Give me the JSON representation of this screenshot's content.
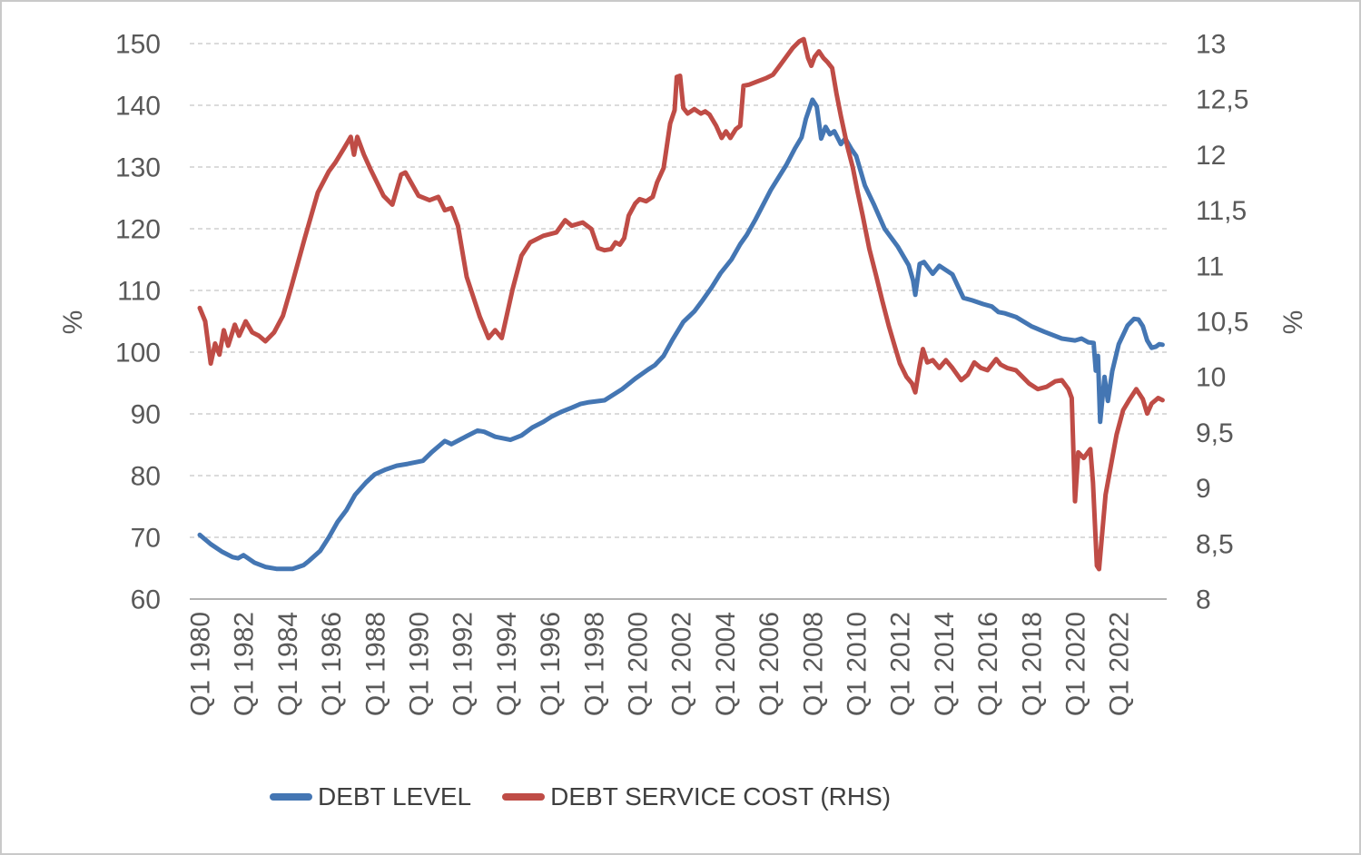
{
  "chart_data": {
    "type": "line",
    "title": "",
    "grid": true,
    "legend": {
      "position": "bottom"
    },
    "left_axis": {
      "title": "%",
      "min": 60,
      "max": 150,
      "step": 10,
      "ticks": [
        "150",
        "140",
        "130",
        "120",
        "110",
        "100",
        "90",
        "80",
        "70",
        "60"
      ]
    },
    "right_axis": {
      "title": "%",
      "min": 8,
      "max": 13,
      "step": 0.5,
      "ticks": [
        "13",
        "12,5",
        "12",
        "11,5",
        "11",
        "10,5",
        "10",
        "9,5",
        "9",
        "8,5",
        "8"
      ]
    },
    "x_axis": {
      "tick_years": [
        1980,
        1982,
        1984,
        1986,
        1988,
        1990,
        1992,
        1994,
        1996,
        1998,
        2000,
        2002,
        2004,
        2006,
        2008,
        2010,
        2012,
        2014,
        2016,
        2018,
        2020,
        2022
      ],
      "tick_labels": [
        "Q1 1980",
        "Q1 1982",
        "Q1 1984",
        "Q1 1986",
        "Q1 1988",
        "Q1 1990",
        "Q1 1992",
        "Q1 1994",
        "Q1 1996",
        "Q1 1998",
        "Q1 2000",
        "Q1 2002",
        "Q1 2004",
        "Q1 2006",
        "Q1 2008",
        "Q1 2010",
        "Q1 2012",
        "Q1 2014",
        "Q1 2016",
        "Q1 2018",
        "Q1 2020",
        "Q1 2022"
      ],
      "range_years": [
        1980,
        2024
      ]
    },
    "series": [
      {
        "name": "DEBT LEVEL",
        "axis": "left",
        "color": "#4476b3",
        "points": [
          [
            1980.0,
            70.4
          ],
          [
            1980.5,
            68.9
          ],
          [
            1981.0,
            67.7
          ],
          [
            1981.5,
            66.8
          ],
          [
            1981.75,
            66.6
          ],
          [
            1982.0,
            67.1
          ],
          [
            1982.5,
            65.9
          ],
          [
            1983.0,
            65.2
          ],
          [
            1983.5,
            64.9
          ],
          [
            1984.25,
            64.9
          ],
          [
            1984.75,
            65.5
          ],
          [
            1985.0,
            66.2
          ],
          [
            1985.5,
            67.8
          ],
          [
            1985.9,
            70.0
          ],
          [
            1986.3,
            72.5
          ],
          [
            1986.7,
            74.4
          ],
          [
            1987.1,
            76.9
          ],
          [
            1987.6,
            78.9
          ],
          [
            1988.0,
            80.2
          ],
          [
            1988.5,
            81.0
          ],
          [
            1989.0,
            81.6
          ],
          [
            1989.5,
            81.9
          ],
          [
            1990.2,
            82.4
          ],
          [
            1990.6,
            83.8
          ],
          [
            1991.0,
            85.0
          ],
          [
            1991.2,
            85.6
          ],
          [
            1991.5,
            85.1
          ],
          [
            1992.2,
            86.4
          ],
          [
            1992.7,
            87.3
          ],
          [
            1993.0,
            87.1
          ],
          [
            1993.5,
            86.3
          ],
          [
            1994.2,
            85.8
          ],
          [
            1994.7,
            86.5
          ],
          [
            1995.2,
            87.8
          ],
          [
            1995.7,
            88.7
          ],
          [
            1996.1,
            89.6
          ],
          [
            1996.5,
            90.3
          ],
          [
            1997.0,
            91.0
          ],
          [
            1997.4,
            91.6
          ],
          [
            1997.8,
            91.9
          ],
          [
            1998.5,
            92.2
          ],
          [
            1999.3,
            94.0
          ],
          [
            1999.9,
            95.7
          ],
          [
            2000.5,
            97.2
          ],
          [
            2000.8,
            97.9
          ],
          [
            2001.2,
            99.4
          ],
          [
            2001.6,
            102.0
          ],
          [
            2002.1,
            104.9
          ],
          [
            2002.6,
            106.6
          ],
          [
            2003.0,
            108.5
          ],
          [
            2003.4,
            110.5
          ],
          [
            2003.8,
            112.8
          ],
          [
            2004.3,
            115.0
          ],
          [
            2004.7,
            117.5
          ],
          [
            2005.0,
            119.0
          ],
          [
            2005.4,
            121.5
          ],
          [
            2006.1,
            126.3
          ],
          [
            2006.8,
            130.3
          ],
          [
            2007.2,
            133.0
          ],
          [
            2007.5,
            134.8
          ],
          [
            2007.7,
            137.8
          ],
          [
            2008.0,
            140.9
          ],
          [
            2008.2,
            139.8
          ],
          [
            2008.4,
            134.6
          ],
          [
            2008.6,
            136.5
          ],
          [
            2008.8,
            135.3
          ],
          [
            2009.0,
            135.8
          ],
          [
            2009.3,
            133.7
          ],
          [
            2009.5,
            134.6
          ],
          [
            2009.8,
            132.8
          ],
          [
            2010.0,
            131.8
          ],
          [
            2010.4,
            127.0
          ],
          [
            2010.8,
            124.0
          ],
          [
            2011.3,
            120.0
          ],
          [
            2011.9,
            117.1
          ],
          [
            2012.4,
            114.1
          ],
          [
            2012.6,
            111.6
          ],
          [
            2012.7,
            109.3
          ],
          [
            2012.9,
            114.3
          ],
          [
            2013.1,
            114.6
          ],
          [
            2013.5,
            112.7
          ],
          [
            2013.8,
            114.0
          ],
          [
            2014.4,
            112.6
          ],
          [
            2014.9,
            108.8
          ],
          [
            2015.3,
            108.4
          ],
          [
            2015.8,
            107.8
          ],
          [
            2016.2,
            107.4
          ],
          [
            2016.5,
            106.5
          ],
          [
            2016.8,
            106.3
          ],
          [
            2017.3,
            105.7
          ],
          [
            2018.0,
            104.2
          ],
          [
            2018.6,
            103.3
          ],
          [
            2019.4,
            102.2
          ],
          [
            2020.0,
            101.9
          ],
          [
            2020.3,
            102.2
          ],
          [
            2020.6,
            101.6
          ],
          [
            2020.85,
            101.5
          ],
          [
            2020.95,
            97.0
          ],
          [
            2021.05,
            99.4
          ],
          [
            2021.15,
            88.7
          ],
          [
            2021.35,
            96.0
          ],
          [
            2021.5,
            92.1
          ],
          [
            2021.7,
            96.9
          ],
          [
            2022.0,
            101.3
          ],
          [
            2022.4,
            104.3
          ],
          [
            2022.7,
            105.4
          ],
          [
            2022.9,
            105.3
          ],
          [
            2023.1,
            104.2
          ],
          [
            2023.3,
            101.9
          ],
          [
            2023.5,
            100.7
          ],
          [
            2023.7,
            100.9
          ],
          [
            2023.85,
            101.3
          ],
          [
            2024.0,
            101.2
          ]
        ]
      },
      {
        "name": "DEBT SERVICE COST (RHS)",
        "axis": "right",
        "color": "#bf4c46",
        "points": [
          [
            1980.0,
            10.62
          ],
          [
            1980.25,
            10.5
          ],
          [
            1980.5,
            10.12
          ],
          [
            1980.7,
            10.3
          ],
          [
            1980.9,
            10.2
          ],
          [
            1981.1,
            10.42
          ],
          [
            1981.3,
            10.28
          ],
          [
            1981.6,
            10.47
          ],
          [
            1981.8,
            10.37
          ],
          [
            1982.1,
            10.5
          ],
          [
            1982.4,
            10.4
          ],
          [
            1982.7,
            10.37
          ],
          [
            1983.0,
            10.32
          ],
          [
            1983.4,
            10.4
          ],
          [
            1983.8,
            10.55
          ],
          [
            1984.2,
            10.82
          ],
          [
            1984.8,
            11.25
          ],
          [
            1985.4,
            11.66
          ],
          [
            1985.9,
            11.85
          ],
          [
            1986.2,
            11.93
          ],
          [
            1986.6,
            12.06
          ],
          [
            1986.9,
            12.16
          ],
          [
            1987.05,
            12.0
          ],
          [
            1987.2,
            12.16
          ],
          [
            1987.5,
            12.0
          ],
          [
            1987.8,
            11.87
          ],
          [
            1988.4,
            11.63
          ],
          [
            1988.8,
            11.55
          ],
          [
            1989.2,
            11.82
          ],
          [
            1989.4,
            11.84
          ],
          [
            1990.0,
            11.63
          ],
          [
            1990.5,
            11.59
          ],
          [
            1990.9,
            11.62
          ],
          [
            1991.2,
            11.5
          ],
          [
            1991.5,
            11.52
          ],
          [
            1991.8,
            11.36
          ],
          [
            1992.2,
            10.9
          ],
          [
            1992.8,
            10.54
          ],
          [
            1993.2,
            10.35
          ],
          [
            1993.5,
            10.42
          ],
          [
            1993.8,
            10.35
          ],
          [
            1994.3,
            10.79
          ],
          [
            1994.7,
            11.09
          ],
          [
            1995.1,
            11.21
          ],
          [
            1995.7,
            11.27
          ],
          [
            1996.3,
            11.3
          ],
          [
            1996.7,
            11.41
          ],
          [
            1997.0,
            11.36
          ],
          [
            1997.5,
            11.39
          ],
          [
            1997.9,
            11.33
          ],
          [
            1998.2,
            11.16
          ],
          [
            1998.5,
            11.14
          ],
          [
            1998.8,
            11.15
          ],
          [
            1999.0,
            11.21
          ],
          [
            1999.2,
            11.19
          ],
          [
            1999.4,
            11.25
          ],
          [
            1999.6,
            11.45
          ],
          [
            1999.9,
            11.56
          ],
          [
            2000.1,
            11.6
          ],
          [
            2000.4,
            11.58
          ],
          [
            2000.7,
            11.62
          ],
          [
            2000.9,
            11.75
          ],
          [
            2001.2,
            11.88
          ],
          [
            2001.5,
            12.28
          ],
          [
            2001.7,
            12.4
          ],
          [
            2001.8,
            12.7
          ],
          [
            2001.95,
            12.71
          ],
          [
            2002.1,
            12.42
          ],
          [
            2002.3,
            12.37
          ],
          [
            2002.6,
            12.41
          ],
          [
            2002.9,
            12.37
          ],
          [
            2003.1,
            12.39
          ],
          [
            2003.3,
            12.36
          ],
          [
            2003.6,
            12.26
          ],
          [
            2003.85,
            12.15
          ],
          [
            2004.05,
            12.21
          ],
          [
            2004.25,
            12.15
          ],
          [
            2004.5,
            12.23
          ],
          [
            2004.7,
            12.26
          ],
          [
            2004.85,
            12.62
          ],
          [
            2005.1,
            12.63
          ],
          [
            2005.5,
            12.66
          ],
          [
            2005.9,
            12.69
          ],
          [
            2006.2,
            12.72
          ],
          [
            2006.5,
            12.8
          ],
          [
            2006.8,
            12.88
          ],
          [
            2007.1,
            12.96
          ],
          [
            2007.4,
            13.02
          ],
          [
            2007.6,
            13.04
          ],
          [
            2007.8,
            12.87
          ],
          [
            2007.95,
            12.8
          ],
          [
            2008.1,
            12.88
          ],
          [
            2008.3,
            12.93
          ],
          [
            2008.5,
            12.87
          ],
          [
            2008.7,
            12.83
          ],
          [
            2008.9,
            12.78
          ],
          [
            2009.1,
            12.55
          ],
          [
            2009.3,
            12.35
          ],
          [
            2009.6,
            12.07
          ],
          [
            2009.85,
            11.88
          ],
          [
            2010.05,
            11.68
          ],
          [
            2010.3,
            11.45
          ],
          [
            2010.6,
            11.15
          ],
          [
            2010.9,
            10.92
          ],
          [
            2011.2,
            10.68
          ],
          [
            2011.5,
            10.45
          ],
          [
            2011.8,
            10.25
          ],
          [
            2012.0,
            10.12
          ],
          [
            2012.3,
            10.0
          ],
          [
            2012.55,
            9.94
          ],
          [
            2012.7,
            9.86
          ],
          [
            2012.9,
            10.1
          ],
          [
            2013.05,
            10.25
          ],
          [
            2013.25,
            10.13
          ],
          [
            2013.5,
            10.15
          ],
          [
            2013.8,
            10.08
          ],
          [
            2014.1,
            10.15
          ],
          [
            2014.4,
            10.08
          ],
          [
            2014.8,
            9.97
          ],
          [
            2015.1,
            10.02
          ],
          [
            2015.4,
            10.13
          ],
          [
            2015.7,
            10.08
          ],
          [
            2016.0,
            10.06
          ],
          [
            2016.4,
            10.16
          ],
          [
            2016.6,
            10.11
          ],
          [
            2016.9,
            10.08
          ],
          [
            2017.3,
            10.06
          ],
          [
            2017.6,
            10.0
          ],
          [
            2017.9,
            9.94
          ],
          [
            2018.3,
            9.89
          ],
          [
            2018.7,
            9.91
          ],
          [
            2019.1,
            9.96
          ],
          [
            2019.4,
            9.97
          ],
          [
            2019.7,
            9.89
          ],
          [
            2019.85,
            9.81
          ],
          [
            2020.0,
            8.88
          ],
          [
            2020.15,
            9.32
          ],
          [
            2020.4,
            9.27
          ],
          [
            2020.7,
            9.35
          ],
          [
            2020.82,
            9.05
          ],
          [
            2021.0,
            8.3
          ],
          [
            2021.1,
            8.27
          ],
          [
            2021.4,
            8.94
          ],
          [
            2021.9,
            9.48
          ],
          [
            2022.2,
            9.7
          ],
          [
            2022.5,
            9.8
          ],
          [
            2022.8,
            9.89
          ],
          [
            2023.1,
            9.8
          ],
          [
            2023.3,
            9.67
          ],
          [
            2023.5,
            9.76
          ],
          [
            2023.8,
            9.81
          ],
          [
            2024.0,
            9.79
          ]
        ]
      }
    ]
  },
  "colors": {
    "gridline": "#cfcfcf",
    "axis_line": "#b3b3b3",
    "tick_text": "#595959",
    "legend_text": "#3f3f3f",
    "border": "#c9c9c9"
  }
}
